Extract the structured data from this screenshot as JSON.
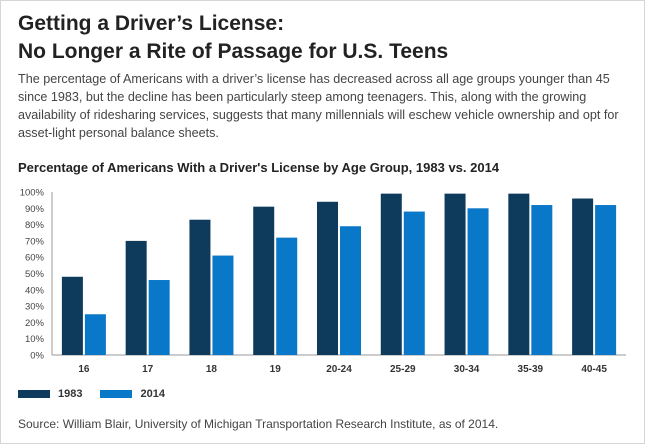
{
  "title_line1": "Getting a Driver’s License:",
  "title_line2": "No Longer a Rite of Passage for U.S. Teens",
  "intro": "The percentage of Americans with a driver’s license has decreased across all age groups younger than 45 since 1983, but the decline has been particularly steep among teenagers. This, along with the growing availability of ridesharing services, suggests that many millennials will eschew vehicle ownership and opt for asset-light personal balance sheets.",
  "source": "Source: William Blair, University of Michigan Transportation Research Institute, as of 2014.",
  "colors": {
    "series_1983": "#0e3a5c",
    "series_2014": "#0a78c8",
    "axis": "#999999"
  },
  "chart_data": {
    "type": "bar",
    "title": "Percentage of Americans With a Driver's License by Age Group, 1983 vs. 2014",
    "xlabel": "",
    "ylabel": "",
    "categories": [
      "16",
      "17",
      "18",
      "19",
      "20-24",
      "25-29",
      "30-34",
      "35-39",
      "40-45"
    ],
    "series": [
      {
        "name": "1983",
        "values": [
          48,
          70,
          83,
          91,
          94,
          99,
          99,
          99,
          96
        ]
      },
      {
        "name": "2014",
        "values": [
          25,
          46,
          61,
          72,
          79,
          88,
          90,
          92,
          92
        ]
      }
    ],
    "yticks": [
      "0%",
      "10%",
      "20%",
      "30%",
      "40%",
      "50%",
      "60%",
      "70%",
      "80%",
      "90%",
      "100%"
    ],
    "ylim": [
      0,
      100
    ],
    "grid": false,
    "legend": "bottom-left"
  }
}
